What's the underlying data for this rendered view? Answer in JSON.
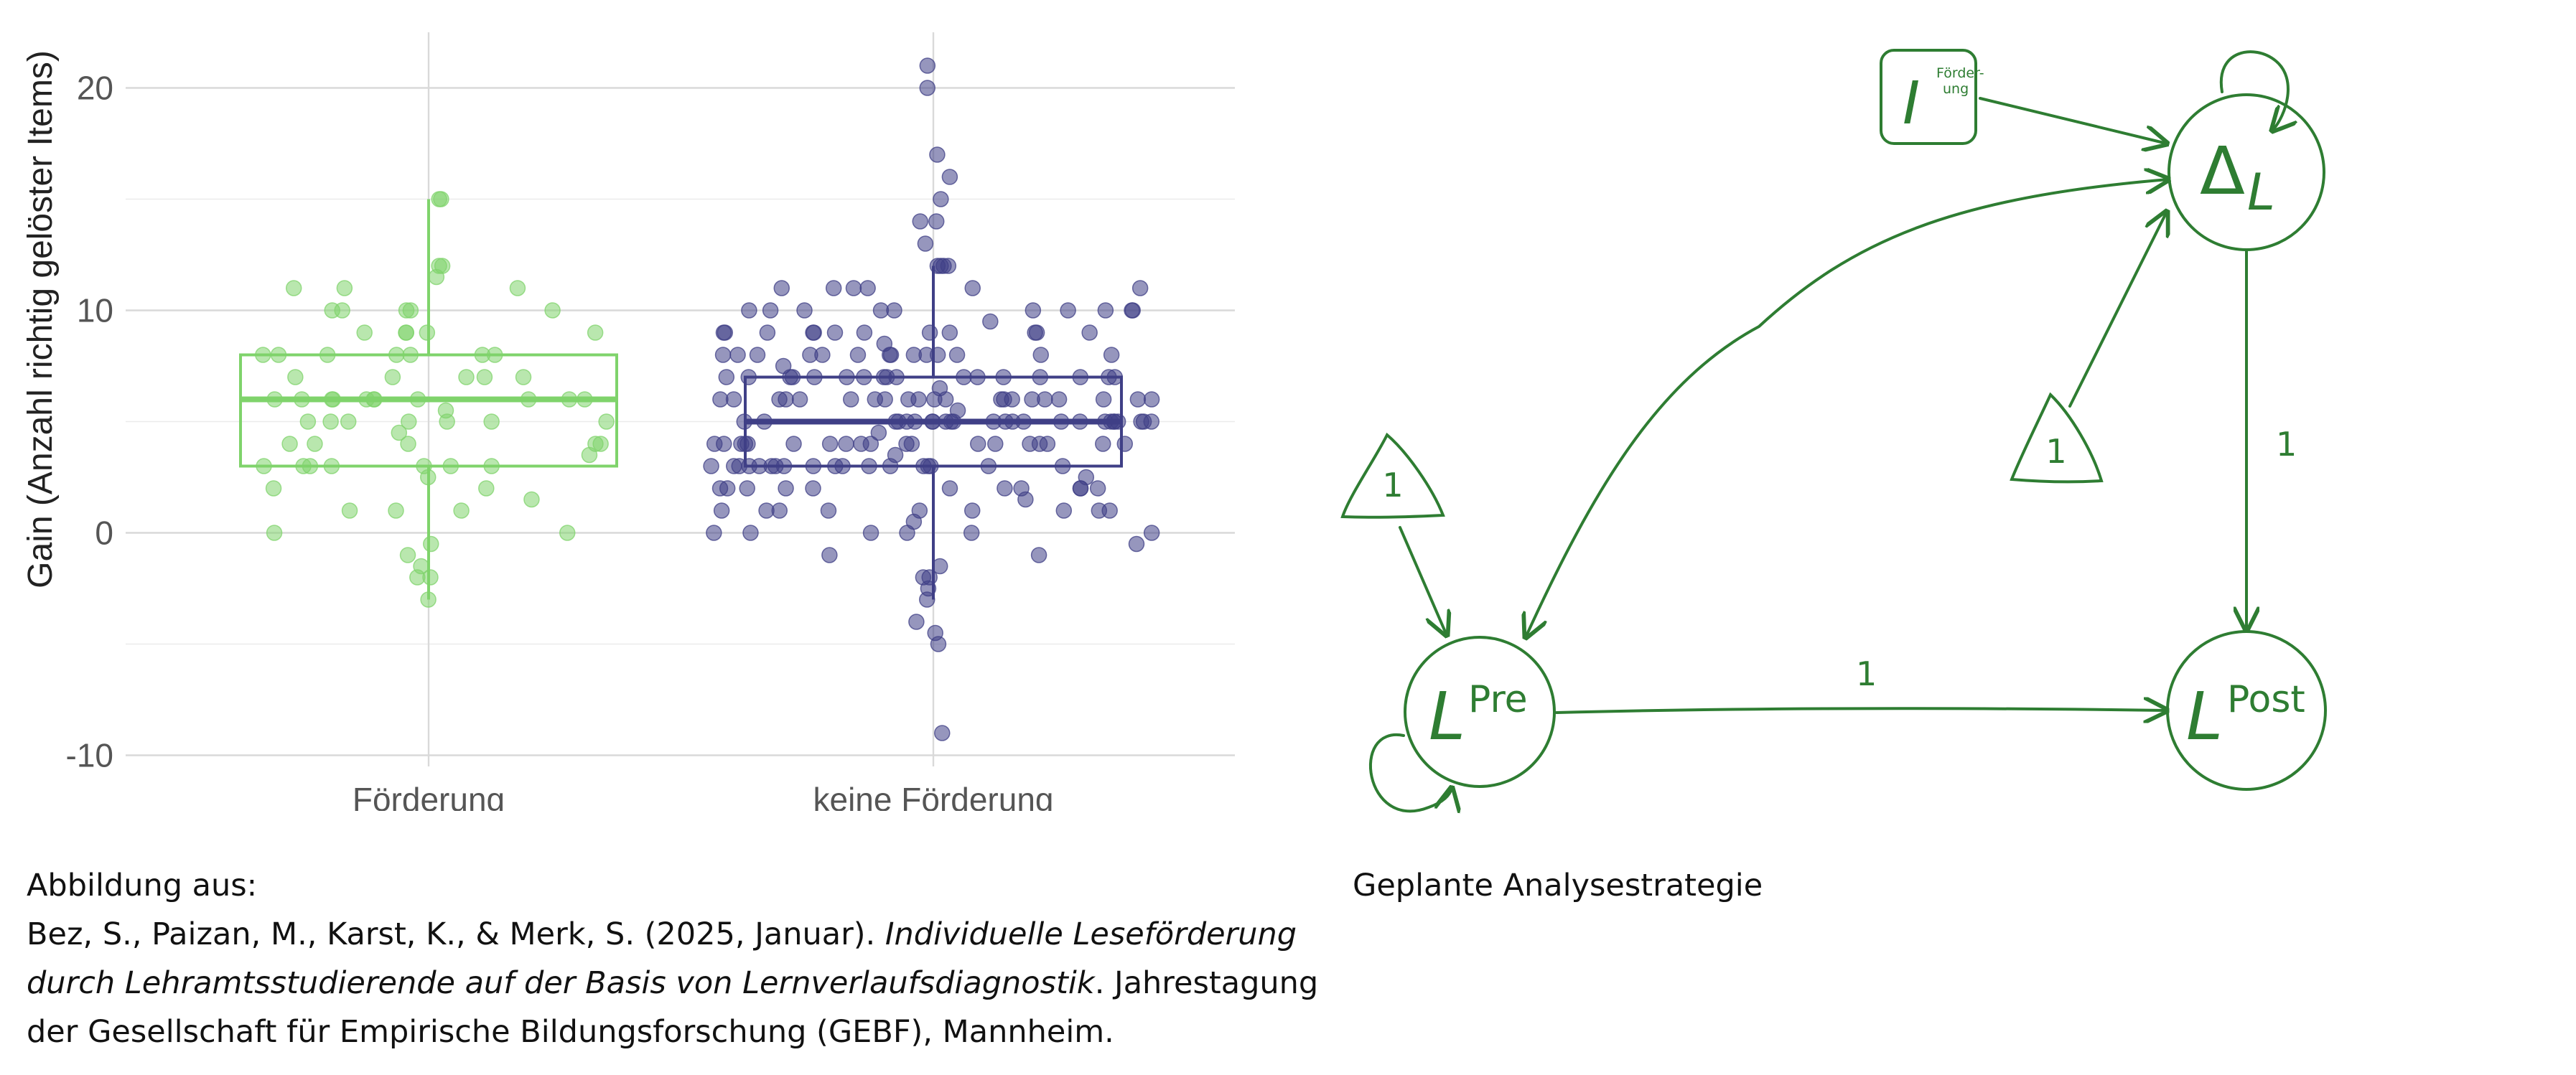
{
  "chart_data": {
    "type": "boxplot",
    "ylabel": "Gain (Anzahl richtig gelöster Items)",
    "xlabel": "",
    "ylim": [
      -10.5,
      22.5
    ],
    "yticks": [
      "-10",
      "0",
      "10",
      "20"
    ],
    "grid": true,
    "categories": [
      "Förderung",
      "keine Förderung"
    ],
    "colors": {
      "Förderung": "#7fd36b",
      "keine Förderung": "#3f3f86"
    },
    "boxes": [
      {
        "category": "Förderung",
        "whisker_low": -3,
        "q1": 3,
        "median": 6,
        "q3": 8,
        "whisker_high": 15
      },
      {
        "category": "keine Förderung",
        "whisker_low": -3,
        "q1": 3,
        "median": 5,
        "q3": 7,
        "whisker_high": 12
      }
    ],
    "points_note": "individual observations shown as jittered points",
    "points": {
      "Förderung": [
        -3,
        -2,
        -2,
        -1.5,
        -1,
        -0.5,
        0,
        0,
        1,
        1,
        1,
        1.5,
        2,
        2,
        2.5,
        3,
        3,
        3,
        3,
        3,
        3,
        3,
        3.5,
        4,
        4,
        4,
        4,
        4,
        4.5,
        5,
        5,
        5,
        5,
        5,
        5,
        5,
        5.5,
        6,
        6,
        6,
        6,
        6,
        6,
        6,
        6,
        6,
        6,
        6,
        7,
        7,
        7,
        7,
        7,
        8,
        8,
        8,
        8,
        8,
        8,
        8,
        9,
        9,
        9,
        9,
        9,
        10,
        10,
        10,
        10,
        10,
        11,
        11,
        11,
        11.5,
        12,
        12,
        15,
        15
      ],
      "keine Förderung": [
        -9,
        -5,
        -4.5,
        -4,
        -3,
        -2.5,
        -2,
        -2,
        -1.5,
        -1,
        -1,
        -0.5,
        0,
        0,
        0,
        0,
        0,
        0,
        0.5,
        1,
        1,
        1,
        1,
        1,
        1,
        1,
        1,
        1,
        1.5,
        2,
        2,
        2,
        2,
        2,
        2,
        2,
        2,
        2,
        2,
        2,
        2.5,
        3,
        3,
        3,
        3,
        3,
        3,
        3,
        3,
        3,
        3,
        3,
        3,
        3,
        3,
        3,
        3,
        3,
        3,
        3.5,
        4,
        4,
        4,
        4,
        4,
        4,
        4,
        4,
        4,
        4,
        4,
        4,
        4,
        4,
        4,
        4,
        4,
        4,
        4,
        4.5,
        5,
        5,
        5,
        5,
        5,
        5,
        5,
        5,
        5,
        5,
        5,
        5,
        5,
        5,
        5,
        5,
        5,
        5,
        5,
        5,
        5,
        5,
        5,
        5,
        5,
        5.5,
        6,
        6,
        6,
        6,
        6,
        6,
        6,
        6,
        6,
        6,
        6,
        6,
        6,
        6,
        6,
        6,
        6,
        6,
        6,
        6,
        6,
        6.5,
        7,
        7,
        7,
        7,
        7,
        7,
        7,
        7,
        7,
        7,
        7,
        7,
        7,
        7,
        7,
        7,
        7,
        7.5,
        8,
        8,
        8,
        8,
        8,
        8,
        8,
        8,
        8,
        8,
        8,
        8,
        8,
        8,
        8.5,
        9,
        9,
        9,
        9,
        9,
        9,
        9,
        9,
        9,
        9,
        9,
        9,
        9.5,
        10,
        10,
        10,
        10,
        10,
        10,
        10,
        10,
        10,
        10,
        11,
        11,
        11,
        11,
        11,
        11,
        12,
        12,
        12,
        12,
        13,
        14,
        14,
        15,
        16,
        17,
        20,
        21
      ]
    }
  },
  "diagram": {
    "nodes": {
      "intervention": {
        "main": "I",
        "super": "Förder-",
        "sub": "ung"
      },
      "delta": {
        "main": "Δ",
        "sub": "L"
      },
      "pre": {
        "main": "L",
        "super": "Pre"
      },
      "post": {
        "main": "L",
        "super": "Post"
      },
      "tri_pre": "1",
      "tri_delta": "1"
    },
    "edge_labels": {
      "delta_post": "1",
      "pre_post": "1"
    },
    "color": "#2e7d32"
  },
  "captions": {
    "left": {
      "line1": "Abbildung aus:",
      "line2_normal": "Bez, S., Paizan, M., Karst, K., & Merk, S. (2025, Januar). ",
      "line2_italic": "Individuelle Leseförderung",
      "line3_italic": "durch Lehramtsstudierende auf der Basis von Lernverlaufsdiagnostik",
      "line3_normal": ". Jahrestagung",
      "line4": "der Gesellschaft für Empirische Bildungsforschung (GEBF), Mannheim."
    },
    "right": "Geplante Analysestrategie"
  }
}
